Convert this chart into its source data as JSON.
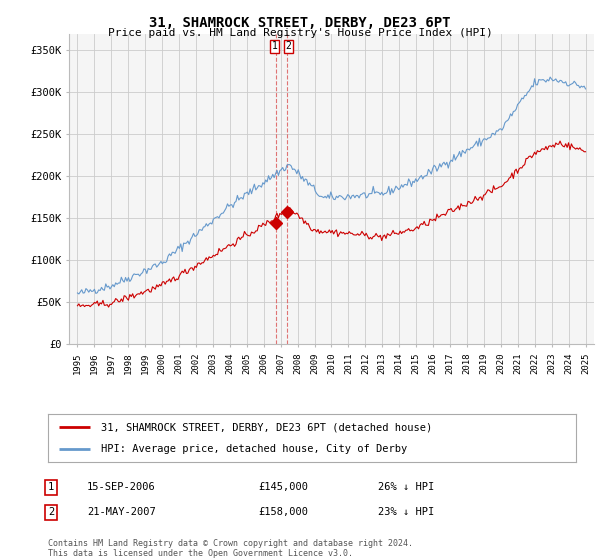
{
  "title": "31, SHAMROCK STREET, DERBY, DE23 6PT",
  "subtitle": "Price paid vs. HM Land Registry's House Price Index (HPI)",
  "title_fontsize": 10,
  "subtitle_fontsize": 8,
  "ylabel_ticks": [
    "£0",
    "£50K",
    "£100K",
    "£150K",
    "£200K",
    "£250K",
    "£300K",
    "£350K"
  ],
  "ytick_values": [
    0,
    50000,
    100000,
    150000,
    200000,
    250000,
    300000,
    350000
  ],
  "ylim": [
    0,
    370000
  ],
  "xlim_start": 1994.5,
  "xlim_end": 2025.5,
  "background_color": "#ffffff",
  "plot_bg_color": "#f5f5f5",
  "grid_color": "#cccccc",
  "red_line_color": "#cc0000",
  "blue_line_color": "#6699cc",
  "marker_color": "#cc0000",
  "vline_color": "#cc0000",
  "sale1_x": 2006.71,
  "sale1_y": 145000,
  "sale1_label": "1",
  "sale1_date": "15-SEP-2006",
  "sale1_price": "£145,000",
  "sale1_hpi": "26% ↓ HPI",
  "sale2_x": 2007.38,
  "sale2_y": 158000,
  "sale2_label": "2",
  "sale2_date": "21-MAY-2007",
  "sale2_price": "£158,000",
  "sale2_hpi": "23% ↓ HPI",
  "legend_line1": "31, SHAMROCK STREET, DERBY, DE23 6PT (detached house)",
  "legend_line2": "HPI: Average price, detached house, City of Derby",
  "footer1": "Contains HM Land Registry data © Crown copyright and database right 2024.",
  "footer2": "This data is licensed under the Open Government Licence v3.0."
}
